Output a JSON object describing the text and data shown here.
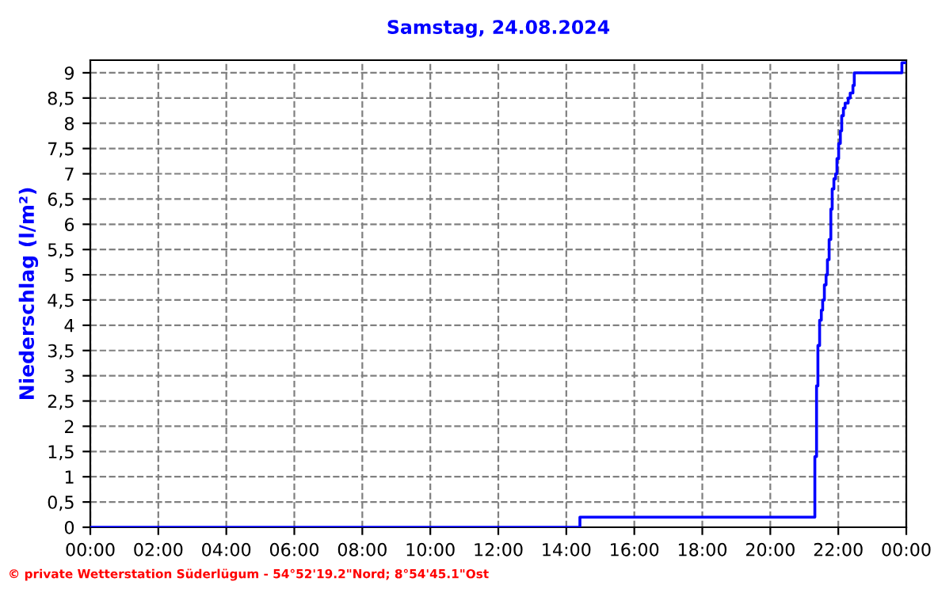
{
  "chart_data": {
    "type": "step",
    "title": "Samstag, 24.08.2024",
    "ylabel": "Niederschlag (l/m²)",
    "annotations": [
      "© private Wetterstation Süderlügum - 54°52'19.2\"Nord; 8°54'45.1\"Ost"
    ],
    "x": [
      0,
      14.4,
      21.31,
      21.36,
      21.4,
      21.45,
      21.5,
      21.54,
      21.59,
      21.64,
      21.68,
      21.73,
      21.78,
      21.82,
      21.87,
      21.92,
      21.96,
      22.01,
      22.06,
      22.1,
      22.15,
      22.2,
      22.29,
      22.35,
      22.43,
      22.47,
      23.87,
      24
    ],
    "series": [
      {
        "color": "#0000ff",
        "values": [
          0,
          0.2,
          1.4,
          2.8,
          3.6,
          4.1,
          4.3,
          4.5,
          4.8,
          5.0,
          5.3,
          5.7,
          6.3,
          6.7,
          6.9,
          7.0,
          7.3,
          7.6,
          7.85,
          8.15,
          8.3,
          8.4,
          8.5,
          8.6,
          8.75,
          9.0,
          9.2,
          9.2
        ]
      }
    ],
    "xlim": [
      0,
      24
    ],
    "xticks": [
      {
        "value": 0,
        "label": "00:00"
      },
      {
        "value": 2,
        "label": "02:00"
      },
      {
        "value": 4,
        "label": "04:00"
      },
      {
        "value": 6,
        "label": "06:00"
      },
      {
        "value": 8,
        "label": "08:00"
      },
      {
        "value": 10,
        "label": "10:00"
      },
      {
        "value": 12,
        "label": "12:00"
      },
      {
        "value": 14,
        "label": "14:00"
      },
      {
        "value": 16,
        "label": "16:00"
      },
      {
        "value": 18,
        "label": "18:00"
      },
      {
        "value": 20,
        "label": "20:00"
      },
      {
        "value": 22,
        "label": "22:00"
      },
      {
        "value": 24,
        "label": "00:00"
      }
    ],
    "ylim": [
      0,
      9.25
    ],
    "yticks": [
      0,
      {
        "value": 0.5,
        "label": "0,5"
      },
      1,
      {
        "value": 1.5,
        "label": "1,5"
      },
      2,
      {
        "value": 2.5,
        "label": "2,5"
      },
      3,
      {
        "value": 3.5,
        "label": "3,5"
      },
      4,
      {
        "value": 4.5,
        "label": "4,5"
      },
      5,
      {
        "value": 5.5,
        "label": "5,5"
      },
      6,
      {
        "value": 6.5,
        "label": "6,5"
      },
      7,
      {
        "value": 7.5,
        "label": "7,5"
      },
      8,
      {
        "value": 8.5,
        "label": "8,5"
      },
      9
    ],
    "grid": true
  }
}
